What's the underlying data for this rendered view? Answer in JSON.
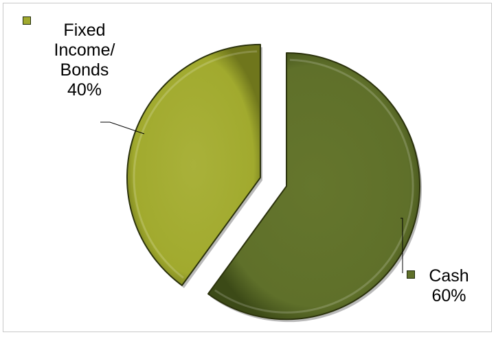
{
  "chart_data": {
    "type": "pie",
    "title": "",
    "exploded": true,
    "slices": [
      {
        "name": "Fixed Income/ Bonds",
        "label_lines": [
          "Fixed",
          "Income/",
          "Bonds"
        ],
        "value": 40,
        "value_label": "40%",
        "color": "#a1aa2e"
      },
      {
        "name": "Cash",
        "label_lines": [
          "Cash"
        ],
        "value": 60,
        "value_label": "60%",
        "color": "#5f702a"
      }
    ]
  }
}
